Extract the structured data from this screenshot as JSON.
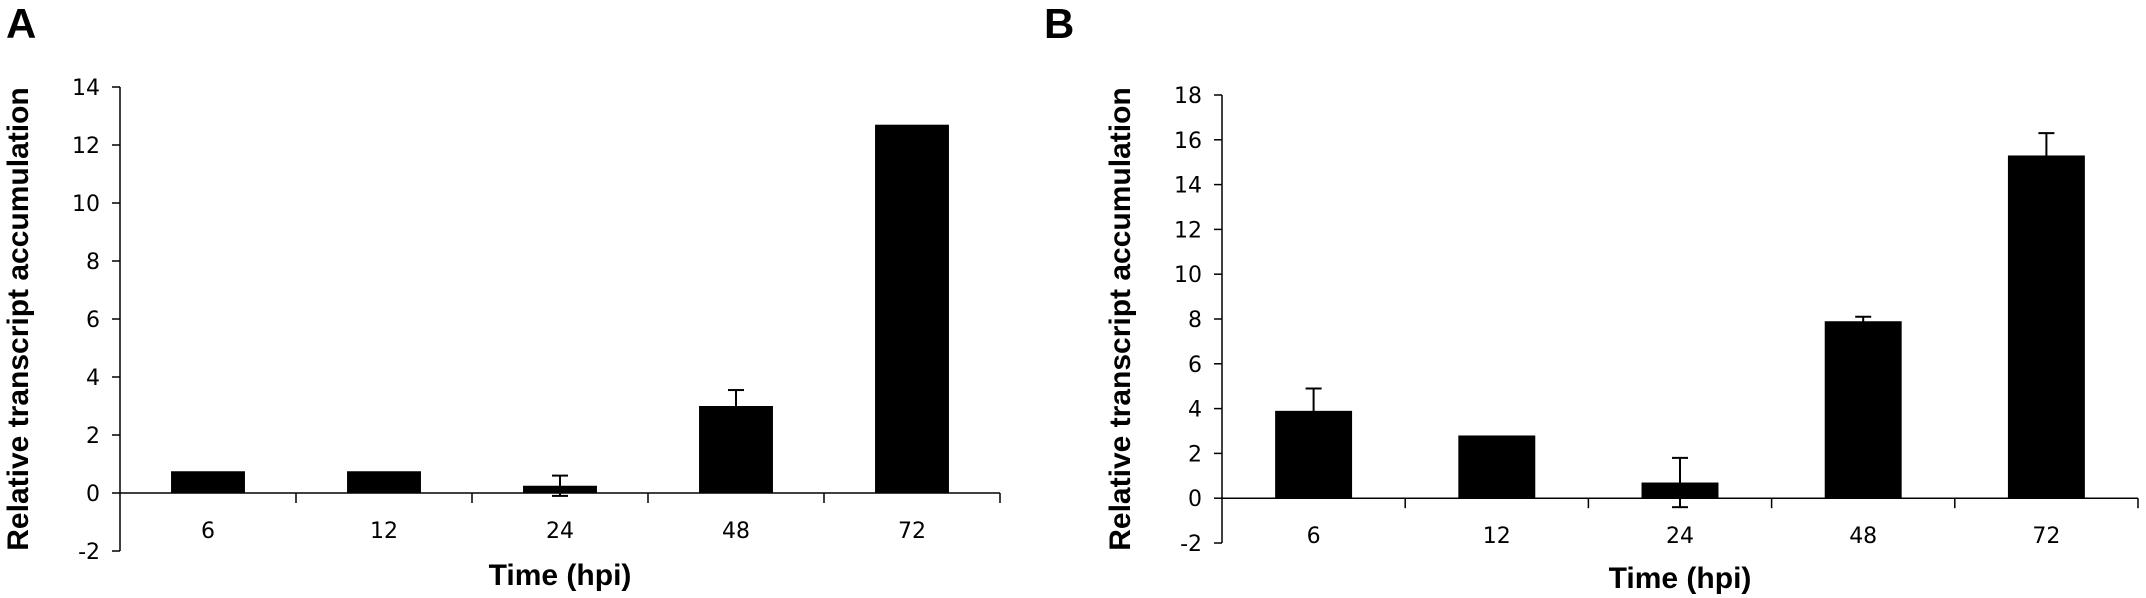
{
  "panels": {
    "a": {
      "label": "A"
    },
    "b": {
      "label": "B"
    }
  },
  "chart_data": [
    {
      "type": "bar",
      "panel": "A",
      "categories": [
        "6",
        "12",
        "24",
        "48",
        "72"
      ],
      "values": [
        0.75,
        0.75,
        0.25,
        3.0,
        12.7
      ],
      "errors": [
        0,
        0,
        0.35,
        0.55,
        0
      ],
      "xlabel": "Time (hpi)",
      "ylabel": "Relative transcript accumulation",
      "ylim": [
        -2,
        14
      ],
      "yticks": [
        -2,
        0,
        2,
        4,
        6,
        8,
        10,
        12,
        14
      ],
      "bar_color": "#000000",
      "grid": false
    },
    {
      "type": "bar",
      "panel": "B",
      "categories": [
        "6",
        "12",
        "24",
        "48",
        "72"
      ],
      "values": [
        3.9,
        2.8,
        0.7,
        7.9,
        15.3
      ],
      "errors": [
        1.0,
        0,
        1.1,
        0.2,
        1.0
      ],
      "xlabel": "Time (hpi)",
      "ylabel": "Relative transcript accumulation",
      "ylim": [
        -2,
        18
      ],
      "yticks": [
        -2,
        0,
        2,
        4,
        6,
        8,
        10,
        12,
        14,
        16,
        18
      ],
      "bar_color": "#000000",
      "grid": false
    }
  ]
}
